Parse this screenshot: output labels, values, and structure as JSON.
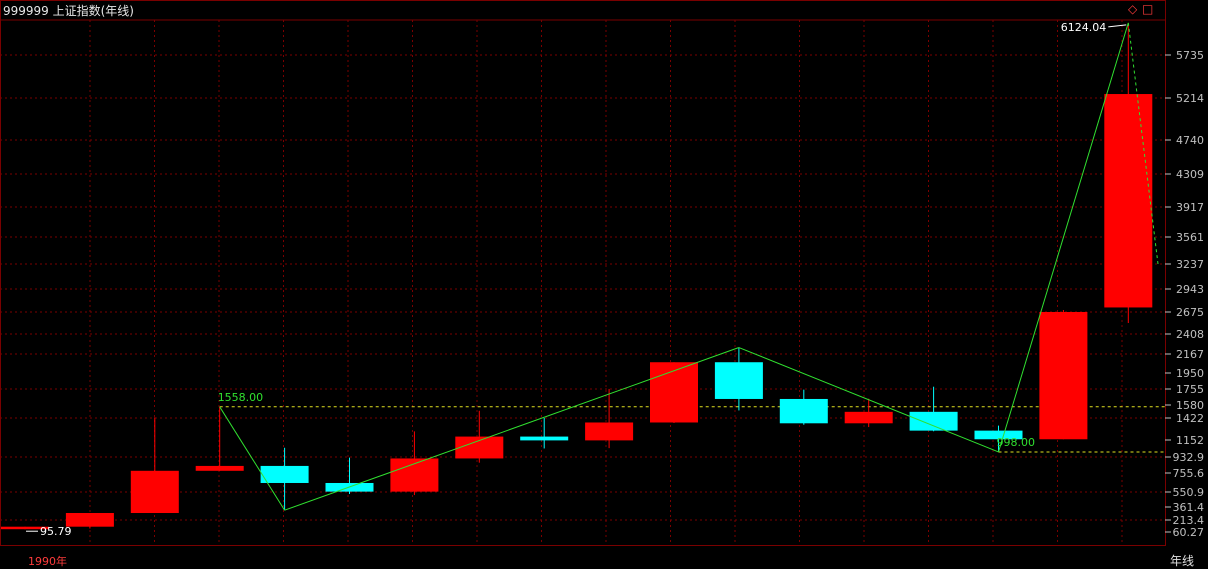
{
  "header": {
    "title": "999999 上证指数(年线)",
    "ctl_diamond": "◇",
    "ctl_square": "□"
  },
  "footer": {
    "start_label": "1990年",
    "period_label": "年线"
  },
  "colors": {
    "up": "#ff0000",
    "down": "#00ffff",
    "grid": "#7a0000",
    "zigzag": "#30e030",
    "level_line": "#e0e020"
  },
  "chart_data": {
    "type": "candlestick",
    "title": "999999 上证指数(年线)",
    "x_start_label": "1990年",
    "y_ticks": [
      "60.27",
      "213.4",
      "361.4",
      "550.9",
      "755.6",
      "932.9",
      "1152",
      "1422",
      "1580",
      "1755",
      "1950",
      "2167",
      "2408",
      "2675",
      "2943",
      "3237",
      "3561",
      "3917",
      "4309",
      "4740",
      "5214",
      "5735"
    ],
    "y_scale": "nonlinear (read from tick labels)",
    "grid": true,
    "candles": [
      {
        "year": 1990,
        "open": 96,
        "high": 128,
        "low": 96,
        "close": 128
      },
      {
        "year": 1991,
        "open": 128,
        "high": 293,
        "low": 105,
        "close": 293
      },
      {
        "year": 1992,
        "open": 293,
        "high": 1429,
        "low": 293,
        "close": 780
      },
      {
        "year": 1993,
        "open": 780,
        "high": 1558,
        "low": 780,
        "close": 834
      },
      {
        "year": 1994,
        "open": 834,
        "high": 1052,
        "low": 325,
        "close": 648
      },
      {
        "year": 1995,
        "open": 648,
        "high": 926,
        "low": 525,
        "close": 555
      },
      {
        "year": 1996,
        "open": 555,
        "high": 1258,
        "low": 512,
        "close": 917
      },
      {
        "year": 1997,
        "open": 917,
        "high": 1510,
        "low": 870,
        "close": 1194
      },
      {
        "year": 1998,
        "open": 1194,
        "high": 1422,
        "low": 1043,
        "close": 1147
      },
      {
        "year": 1999,
        "open": 1147,
        "high": 1756,
        "low": 1047,
        "close": 1367
      },
      {
        "year": 2000,
        "open": 1367,
        "high": 2073,
        "low": 1361,
        "close": 2073
      },
      {
        "year": 2001,
        "open": 2073,
        "high": 2245,
        "low": 1514,
        "close": 1646
      },
      {
        "year": 2002,
        "open": 1646,
        "high": 1748,
        "low": 1339,
        "close": 1357
      },
      {
        "year": 2003,
        "open": 1357,
        "high": 1649,
        "low": 1311,
        "close": 1497
      },
      {
        "year": 2004,
        "open": 1497,
        "high": 1783,
        "low": 1259,
        "close": 1267
      },
      {
        "year": 2005,
        "open": 1267,
        "high": 1328,
        "low": 998,
        "close": 1161
      },
      {
        "year": 2006,
        "open": 1161,
        "high": 2698,
        "low": 1161,
        "close": 2675
      },
      {
        "year": 2007,
        "open": 2728,
        "high": 6124,
        "low": 2541,
        "close": 5262
      }
    ],
    "annotations": [
      {
        "text": "1558.00",
        "value": 1558,
        "type": "high_point",
        "color": "#30e030"
      },
      {
        "text": "998.00",
        "value": 998,
        "type": "low_point",
        "color": "#30e030"
      },
      {
        "text": "6124.04",
        "value": 6124.04,
        "type": "max",
        "color": "#ffffff"
      },
      {
        "text": "95.79",
        "value": 95.79,
        "type": "min",
        "color": "#ffffff"
      }
    ],
    "zigzag": [
      {
        "year": 1993,
        "value": 1558
      },
      {
        "year": 1994,
        "value": 325
      },
      {
        "year": 2001,
        "value": 2245
      },
      {
        "year": 2005,
        "value": 998
      },
      {
        "year": 2007,
        "value": 6124
      }
    ]
  }
}
